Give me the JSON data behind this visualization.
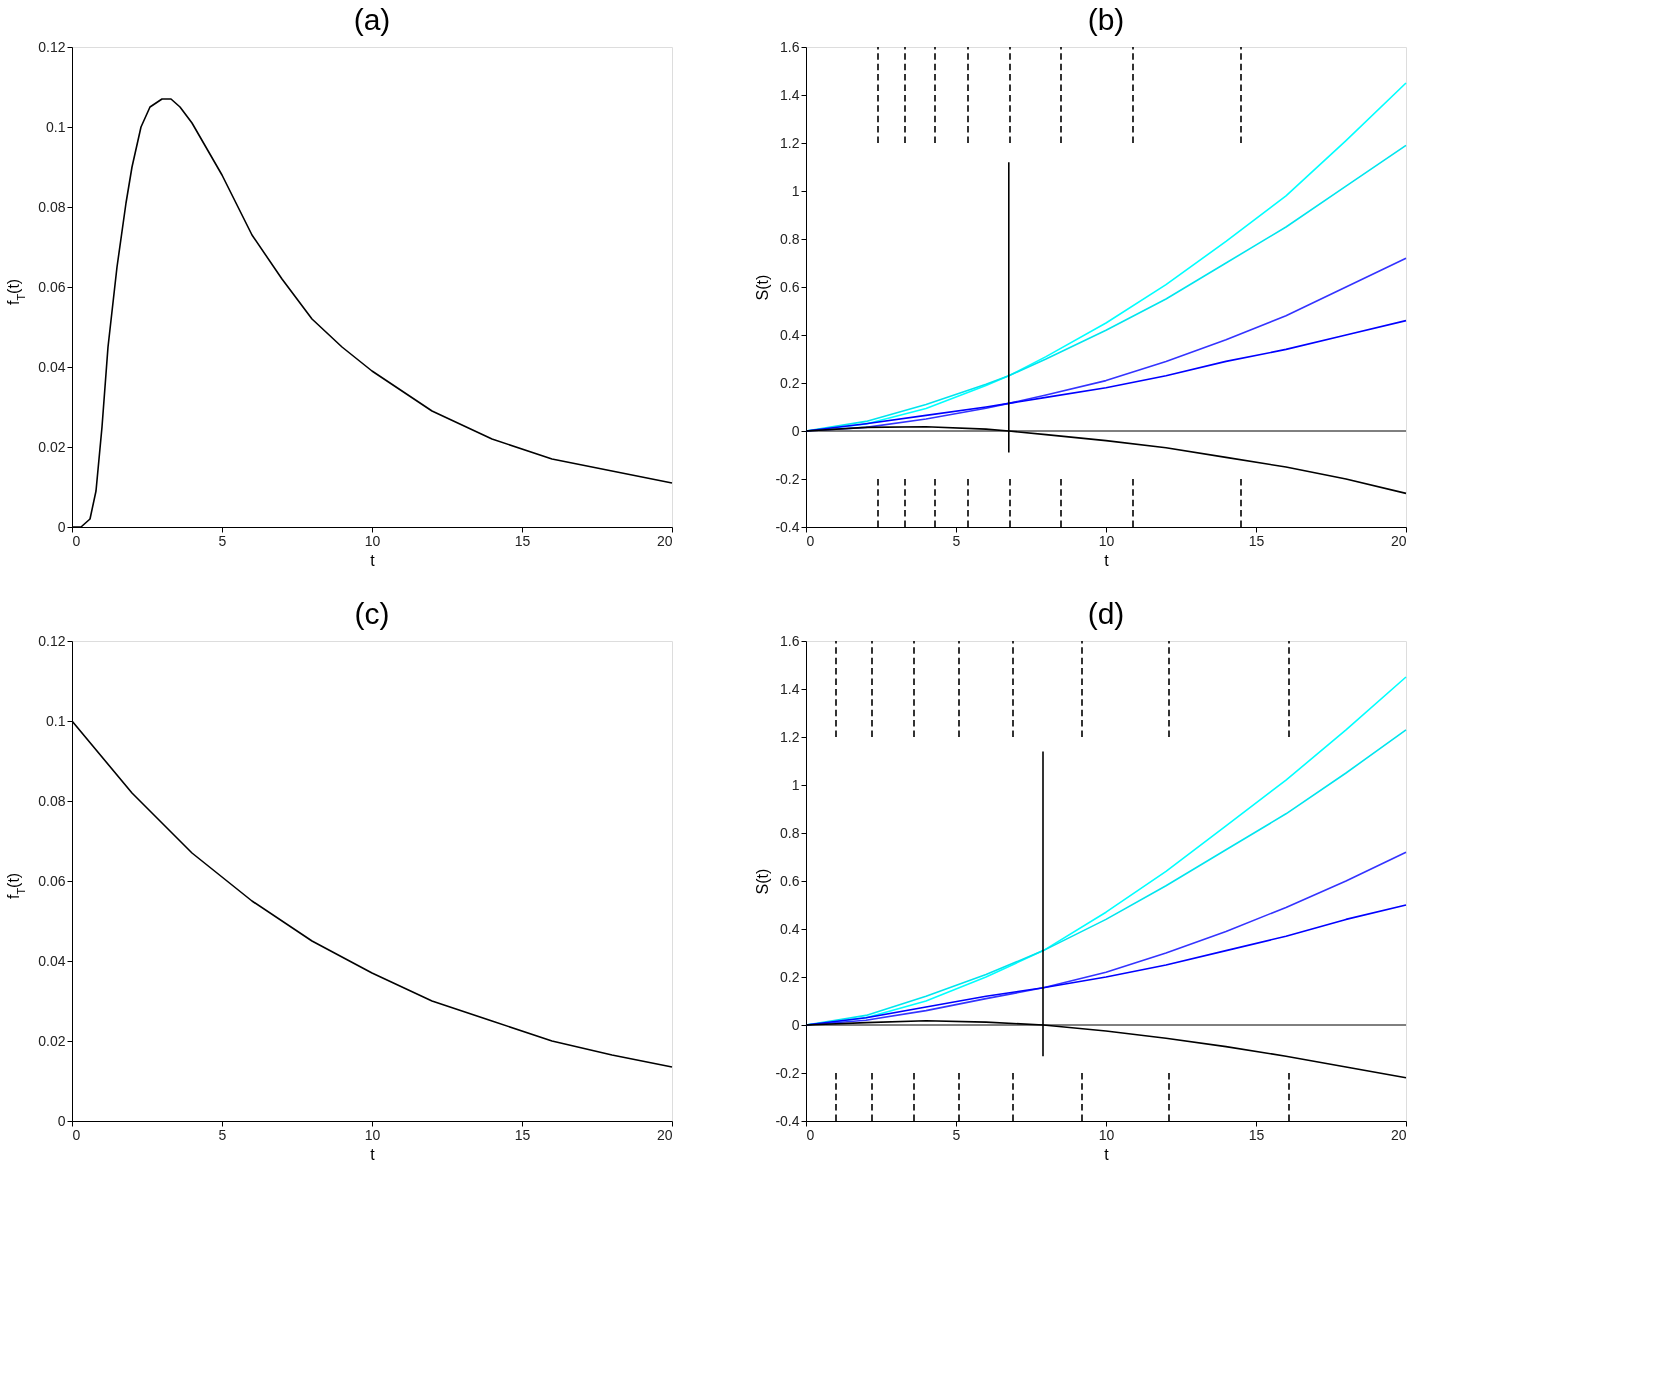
{
  "chart_data": [
    {
      "type": "line",
      "title": "(a)",
      "xlabel": "t",
      "ylabel": "f$_{T}$(t)",
      "xlim": [
        0,
        20
      ],
      "xticks": [
        0,
        5,
        10,
        15,
        20
      ],
      "ylim": [
        0,
        0.12
      ],
      "yticks": [
        0,
        0.02,
        0.04,
        0.06,
        0.08,
        0.1,
        0.12
      ],
      "x": [
        0,
        0.3,
        0.6,
        0.8,
        1,
        1.2,
        1.5,
        1.8,
        2,
        2.3,
        2.6,
        3,
        3.3,
        3.6,
        4,
        5,
        6,
        7,
        8,
        9,
        10,
        12,
        14,
        16,
        18,
        20
      ],
      "series": [
        {
          "color": "#000000",
          "values": [
            0,
            0,
            0.002,
            0.009,
            0.025,
            0.045,
            0.065,
            0.081,
            0.09,
            0.1,
            0.105,
            0.107,
            0.107,
            0.105,
            0.101,
            0.088,
            0.073,
            0.062,
            0.052,
            0.045,
            0.039,
            0.029,
            0.022,
            0.017,
            0.014,
            0.011
          ]
        }
      ]
    },
    {
      "type": "line",
      "title": "(b)",
      "xlabel": "t",
      "ylabel": "S(t)",
      "xlim": [
        0,
        20
      ],
      "xticks": [
        0,
        5,
        10,
        15,
        20
      ],
      "ylim": [
        -0.4,
        1.6
      ],
      "yticks": [
        -0.4,
        -0.2,
        0,
        0.2,
        0.4,
        0.6,
        0.8,
        1,
        1.2,
        1.4,
        1.6
      ],
      "x": [
        0,
        2,
        4,
        6,
        6.76,
        8,
        10,
        12,
        14,
        16,
        18,
        20
      ],
      "ref_lines": [
        {
          "axis": "y",
          "value": 0,
          "color": "#000000"
        }
      ],
      "series": [
        {
          "color": "#00ffff",
          "values": [
            0,
            0.029,
            0.094,
            0.19,
            0.23,
            0.31,
            0.45,
            0.61,
            0.79,
            0.98,
            1.21,
            1.45
          ]
        },
        {
          "color": "#00e5ee",
          "values": [
            0,
            0.04,
            0.11,
            0.195,
            0.23,
            0.3,
            0.42,
            0.55,
            0.7,
            0.85,
            1.02,
            1.19
          ]
        },
        {
          "color": "#3333ff",
          "values": [
            0,
            0.015,
            0.05,
            0.095,
            0.115,
            0.15,
            0.21,
            0.29,
            0.38,
            0.48,
            0.6,
            0.72
          ]
        },
        {
          "color": "#0000ff",
          "values": [
            0,
            0.03,
            0.065,
            0.1,
            0.115,
            0.14,
            0.18,
            0.23,
            0.29,
            0.34,
            0.4,
            0.46
          ]
        },
        {
          "color": "#000000",
          "values": [
            0,
            0.015,
            0.018,
            0.008,
            0,
            -0.015,
            -0.04,
            -0.07,
            -0.11,
            -0.15,
            -0.2,
            -0.26
          ]
        },
        {
          "color": "#000000",
          "x": [
            6.76,
            6.76
          ],
          "values": [
            -0.09,
            1.12
          ]
        },
        {
          "color": "#000000",
          "line_style": "dashed",
          "x": [
            2.4,
            2.4
          ],
          "values": [
            1.2,
            1.6
          ]
        },
        {
          "color": "#000000",
          "line_style": "dashed",
          "x": [
            3.3,
            3.3
          ],
          "values": [
            1.2,
            1.6
          ]
        },
        {
          "color": "#000000",
          "line_style": "dashed",
          "x": [
            4.3,
            4.3
          ],
          "values": [
            1.2,
            1.6
          ]
        },
        {
          "color": "#000000",
          "line_style": "dashed",
          "x": [
            5.4,
            5.4
          ],
          "values": [
            1.2,
            1.6
          ]
        },
        {
          "color": "#000000",
          "line_style": "dashed",
          "x": [
            6.8,
            6.8
          ],
          "values": [
            1.2,
            1.6
          ]
        },
        {
          "color": "#000000",
          "line_style": "dashed",
          "x": [
            8.5,
            8.5
          ],
          "values": [
            1.2,
            1.6
          ]
        },
        {
          "color": "#000000",
          "line_style": "dashed",
          "x": [
            10.9,
            10.9
          ],
          "values": [
            1.2,
            1.6
          ]
        },
        {
          "color": "#000000",
          "line_style": "dashed",
          "x": [
            14.5,
            14.5
          ],
          "values": [
            1.2,
            1.6
          ]
        },
        {
          "color": "#000000",
          "line_style": "dashed",
          "x": [
            2.4,
            2.4
          ],
          "values": [
            -0.4,
            -0.2
          ]
        },
        {
          "color": "#000000",
          "line_style": "dashed",
          "x": [
            3.3,
            3.3
          ],
          "values": [
            -0.4,
            -0.2
          ]
        },
        {
          "color": "#000000",
          "line_style": "dashed",
          "x": [
            4.3,
            4.3
          ],
          "values": [
            -0.4,
            -0.2
          ]
        },
        {
          "color": "#000000",
          "line_style": "dashed",
          "x": [
            5.4,
            5.4
          ],
          "values": [
            -0.4,
            -0.2
          ]
        },
        {
          "color": "#000000",
          "line_style": "dashed",
          "x": [
            6.8,
            6.8
          ],
          "values": [
            -0.4,
            -0.2
          ]
        },
        {
          "color": "#000000",
          "line_style": "dashed",
          "x": [
            8.5,
            8.5
          ],
          "values": [
            -0.4,
            -0.2
          ]
        },
        {
          "color": "#000000",
          "line_style": "dashed",
          "x": [
            10.9,
            10.9
          ],
          "values": [
            -0.4,
            -0.2
          ]
        },
        {
          "color": "#000000",
          "line_style": "dashed",
          "x": [
            14.5,
            14.5
          ],
          "values": [
            -0.4,
            -0.2
          ]
        }
      ]
    },
    {
      "type": "line",
      "title": "(c)",
      "xlabel": "t",
      "ylabel": "f$_{T}$(t)",
      "xlim": [
        0,
        20
      ],
      "xticks": [
        0,
        5,
        10,
        15,
        20
      ],
      "ylim": [
        0,
        0.12
      ],
      "yticks": [
        0,
        0.02,
        0.04,
        0.06,
        0.08,
        0.1,
        0.12
      ],
      "x": [
        0,
        2,
        4,
        6,
        8,
        10,
        12,
        14,
        16,
        18,
        20
      ],
      "series": [
        {
          "color": "#000000",
          "values": [
            0.1,
            0.082,
            0.067,
            0.055,
            0.045,
            0.037,
            0.03,
            0.025,
            0.02,
            0.0165,
            0.0135
          ]
        }
      ]
    },
    {
      "type": "line",
      "title": "(d)",
      "xlabel": "t",
      "ylabel": "S(t)",
      "xlim": [
        0,
        20
      ],
      "xticks": [
        0,
        5,
        10,
        15,
        20
      ],
      "ylim": [
        -0.4,
        1.6
      ],
      "yticks": [
        -0.4,
        -0.2,
        0,
        0.2,
        0.4,
        0.6,
        0.8,
        1,
        1.2,
        1.4,
        1.6
      ],
      "x": [
        0,
        2,
        4,
        6,
        7.91,
        10,
        12,
        14,
        16,
        18,
        20
      ],
      "ref_lines": [
        {
          "axis": "y",
          "value": 0,
          "color": "#000000"
        }
      ],
      "series": [
        {
          "color": "#00ffff",
          "values": [
            0,
            0.03,
            0.1,
            0.2,
            0.31,
            0.47,
            0.64,
            0.83,
            1.02,
            1.23,
            1.45
          ]
        },
        {
          "color": "#00e5ee",
          "values": [
            0,
            0.04,
            0.12,
            0.21,
            0.31,
            0.44,
            0.58,
            0.73,
            0.88,
            1.05,
            1.23
          ]
        },
        {
          "color": "#3333ff",
          "values": [
            0,
            0.02,
            0.06,
            0.11,
            0.155,
            0.22,
            0.3,
            0.39,
            0.49,
            0.6,
            0.72
          ]
        },
        {
          "color": "#0000ff",
          "values": [
            0,
            0.03,
            0.075,
            0.12,
            0.155,
            0.2,
            0.25,
            0.31,
            0.37,
            0.44,
            0.5
          ]
        },
        {
          "color": "#000000",
          "values": [
            0,
            0.01,
            0.018,
            0.012,
            0,
            -0.025,
            -0.055,
            -0.09,
            -0.13,
            -0.175,
            -0.22
          ]
        },
        {
          "color": "#000000",
          "x": [
            7.9,
            7.9
          ],
          "values": [
            -0.13,
            1.14
          ]
        },
        {
          "color": "#000000",
          "line_style": "dashed",
          "x": [
            1,
            1
          ],
          "values": [
            1.2,
            1.6
          ]
        },
        {
          "color": "#000000",
          "line_style": "dashed",
          "x": [
            2.2,
            2.2
          ],
          "values": [
            1.2,
            1.6
          ]
        },
        {
          "color": "#000000",
          "line_style": "dashed",
          "x": [
            3.6,
            3.6
          ],
          "values": [
            1.2,
            1.6
          ]
        },
        {
          "color": "#000000",
          "line_style": "dashed",
          "x": [
            5.1,
            5.1
          ],
          "values": [
            1.2,
            1.6
          ]
        },
        {
          "color": "#000000",
          "line_style": "dashed",
          "x": [
            6.9,
            6.9
          ],
          "values": [
            1.2,
            1.6
          ]
        },
        {
          "color": "#000000",
          "line_style": "dashed",
          "x": [
            9.2,
            9.2
          ],
          "values": [
            1.2,
            1.6
          ]
        },
        {
          "color": "#000000",
          "line_style": "dashed",
          "x": [
            12.1,
            12.1
          ],
          "values": [
            1.2,
            1.6
          ]
        },
        {
          "color": "#000000",
          "line_style": "dashed",
          "x": [
            16.1,
            16.1
          ],
          "values": [
            1.2,
            1.6
          ]
        },
        {
          "color": "#000000",
          "line_style": "dashed",
          "x": [
            1,
            1
          ],
          "values": [
            -0.4,
            -0.2
          ]
        },
        {
          "color": "#000000",
          "line_style": "dashed",
          "x": [
            2.2,
            2.2
          ],
          "values": [
            -0.4,
            -0.2
          ]
        },
        {
          "color": "#000000",
          "line_style": "dashed",
          "x": [
            3.6,
            3.6
          ],
          "values": [
            -0.4,
            -0.2
          ]
        },
        {
          "color": "#000000",
          "line_style": "dashed",
          "x": [
            5.1,
            5.1
          ],
          "values": [
            -0.4,
            -0.2
          ]
        },
        {
          "color": "#000000",
          "line_style": "dashed",
          "x": [
            6.9,
            6.9
          ],
          "values": [
            -0.4,
            -0.2
          ]
        },
        {
          "color": "#000000",
          "line_style": "dashed",
          "x": [
            9.2,
            9.2
          ],
          "values": [
            -0.4,
            -0.2
          ]
        },
        {
          "color": "#000000",
          "line_style": "dashed",
          "x": [
            12.1,
            12.1
          ],
          "values": [
            -0.4,
            -0.2
          ]
        },
        {
          "color": "#000000",
          "line_style": "dashed",
          "x": [
            16.1,
            16.1
          ],
          "values": [
            -0.4,
            -0.2
          ]
        }
      ]
    }
  ]
}
